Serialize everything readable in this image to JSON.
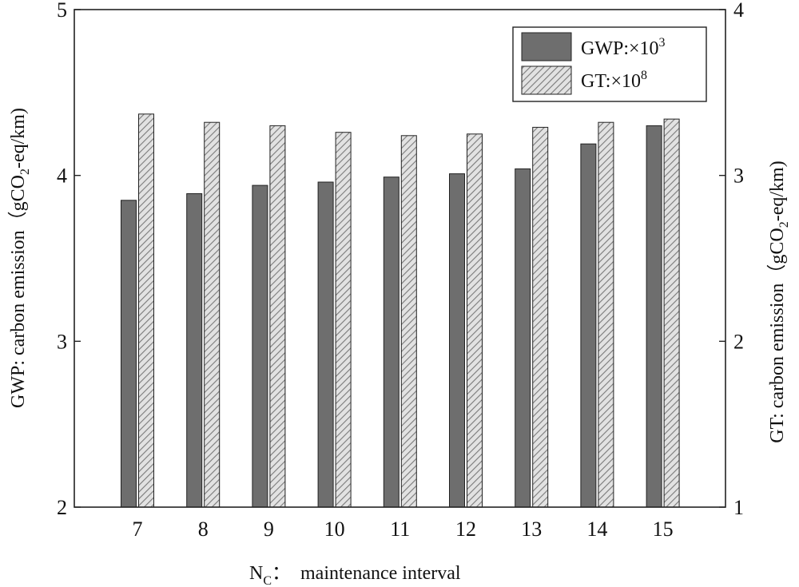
{
  "chart_data": {
    "type": "bar",
    "title": "",
    "xlabel": {
      "main": "N",
      "sub": "C",
      "rest": "：  maintenance interval"
    },
    "ylabel_left": {
      "pre": "GWP: carbon emission（gCO",
      "sub": "2",
      "post": "-eq/km)"
    },
    "ylabel_right": {
      "pre": "GT: carbon emission（gCO",
      "sub": "2",
      "post": "-eq/km)"
    },
    "categories": [
      "7",
      "8",
      "9",
      "10",
      "11",
      "12",
      "13",
      "14",
      "15"
    ],
    "ylim_left": [
      2,
      5
    ],
    "yticks_left": [
      "2",
      "3",
      "4",
      "5"
    ],
    "ylim_right": [
      1,
      4
    ],
    "yticks_right": [
      "1",
      "2",
      "3",
      "4"
    ],
    "series": [
      {
        "name": "GWP",
        "legend_label": "GWP:×10",
        "legend_exp": "3",
        "axis": "left",
        "fill": "solid-gray",
        "color": "#6e6e6e",
        "values": [
          3.85,
          3.89,
          3.94,
          3.96,
          3.99,
          4.01,
          4.04,
          4.19,
          4.3
        ]
      },
      {
        "name": "GT",
        "legend_label": "GT:×10",
        "legend_exp": "8",
        "axis": "right",
        "fill": "hatched",
        "color": "#bdbdbd",
        "values": [
          3.37,
          3.32,
          3.3,
          3.26,
          3.24,
          3.25,
          3.29,
          3.32,
          3.34
        ]
      }
    ],
    "legend_position": "top-right",
    "grid": false
  }
}
